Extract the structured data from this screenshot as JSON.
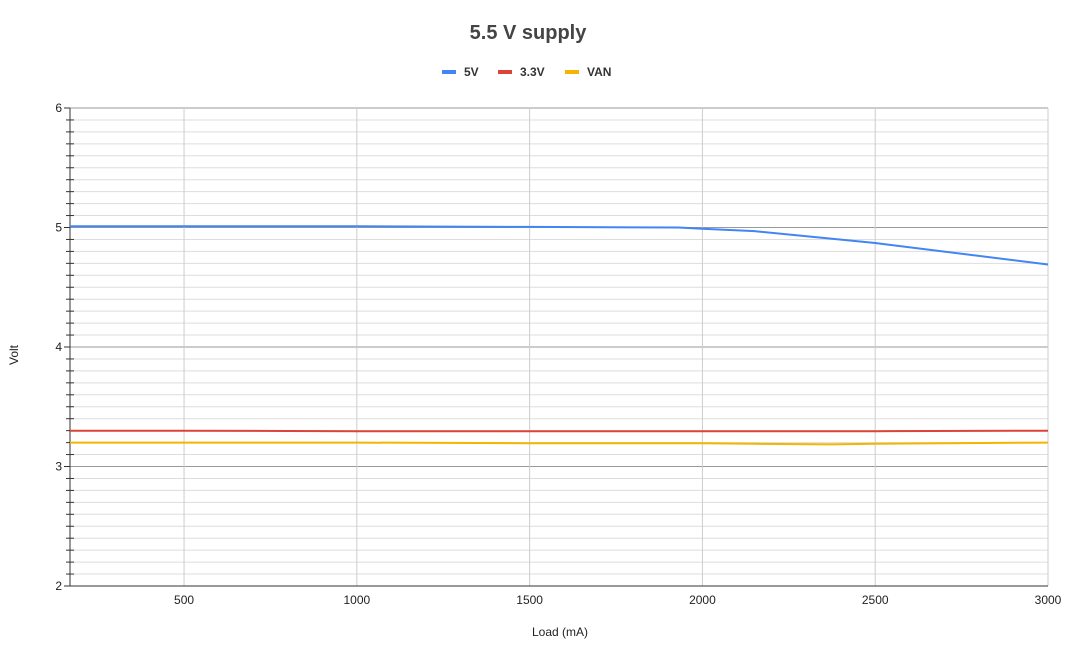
{
  "chart_data": {
    "type": "line",
    "title": "5.5 V supply",
    "xlabel": "Load (mA)",
    "ylabel": "Volt",
    "xlim": [
      170,
      3000
    ],
    "ylim": [
      2,
      6
    ],
    "x_ticks": [
      "500",
      "1000",
      "1500",
      "2000",
      "2500",
      "3000"
    ],
    "y_ticks": [
      "2",
      "3",
      "4",
      "5",
      "6"
    ],
    "legend_position": "top",
    "grid": true,
    "series": [
      {
        "name": "5V",
        "color": "#4285f4",
        "x": [
          170,
          500,
          1000,
          1500,
          1930,
          2000,
          2150,
          2500,
          3000
        ],
        "y": [
          5.01,
          5.01,
          5.01,
          5.005,
          5.0,
          4.99,
          4.97,
          4.87,
          4.69
        ]
      },
      {
        "name": "3.3V",
        "color": "#db4437",
        "x": [
          170,
          500,
          1000,
          1500,
          2000,
          2500,
          3000
        ],
        "y": [
          3.3,
          3.3,
          3.295,
          3.295,
          3.295,
          3.295,
          3.3
        ]
      },
      {
        "name": "VAN",
        "color": "#f4b400",
        "x": [
          170,
          500,
          1000,
          1500,
          2000,
          2150,
          2370,
          2500,
          2700,
          3000
        ],
        "y": [
          3.2,
          3.2,
          3.2,
          3.195,
          3.195,
          3.19,
          3.185,
          3.19,
          3.195,
          3.2
        ]
      }
    ]
  }
}
